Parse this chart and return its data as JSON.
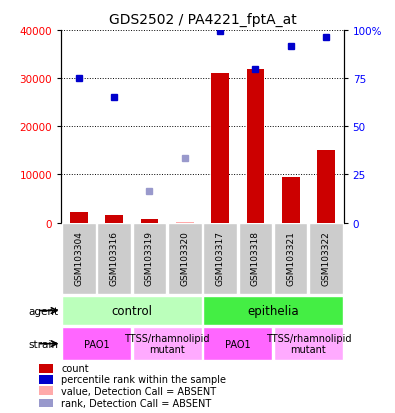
{
  "title": "GDS2502 / PA4221_fptA_at",
  "samples": [
    "GSM103304",
    "GSM103316",
    "GSM103319",
    "GSM103320",
    "GSM103317",
    "GSM103318",
    "GSM103321",
    "GSM103322"
  ],
  "counts": [
    2200,
    1500,
    700,
    200,
    31000,
    32000,
    9500,
    15000
  ],
  "percentile_ranks_present": [
    30000,
    26000,
    null,
    null,
    null,
    null,
    null,
    null
  ],
  "percentile_ranks_absent": [
    null,
    null,
    6500,
    13500,
    null,
    null,
    null,
    null
  ],
  "percentile_ranks_epithelia": [
    null,
    null,
    null,
    null,
    39800,
    32000,
    36700,
    38500
  ],
  "count_absent_vals": [
    null,
    null,
    null,
    200,
    null,
    null,
    null,
    null
  ],
  "ylim": [
    0,
    40000
  ],
  "yticks": [
    0,
    10000,
    20000,
    30000,
    40000
  ],
  "yticks_left_labels": [
    "0",
    "10000",
    "20000",
    "30000",
    "40000"
  ],
  "yticks_right_labels": [
    "0",
    "25",
    "50",
    "75",
    "100%"
  ],
  "bar_color": "#cc0000",
  "bar_absent_color": "#ffaaaa",
  "dot_color": "#0000cc",
  "dot_absent_color": "#9999cc",
  "agent_groups": [
    {
      "label": "control",
      "start": 0,
      "end": 4,
      "color": "#bbffbb"
    },
    {
      "label": "epithelia",
      "start": 4,
      "end": 8,
      "color": "#44ee44"
    }
  ],
  "strain_groups": [
    {
      "label": "PAO1",
      "start": 0,
      "end": 2,
      "color": "#ff66ff"
    },
    {
      "label": "TTSS/rhamnolipid\nmutant",
      "start": 2,
      "end": 4,
      "color": "#ffaaff"
    },
    {
      "label": "PAO1",
      "start": 4,
      "end": 6,
      "color": "#ff66ff"
    },
    {
      "label": "TTSS/rhamnolipid\nmutant",
      "start": 6,
      "end": 8,
      "color": "#ffaaff"
    }
  ],
  "bg_color": "#ffffff",
  "sample_area_color": "#cccccc",
  "legend_items": [
    {
      "color": "#cc0000",
      "label": "count"
    },
    {
      "color": "#0000cc",
      "label": "percentile rank within the sample"
    },
    {
      "color": "#ffaaaa",
      "label": "value, Detection Call = ABSENT"
    },
    {
      "color": "#9999cc",
      "label": "rank, Detection Call = ABSENT"
    }
  ]
}
